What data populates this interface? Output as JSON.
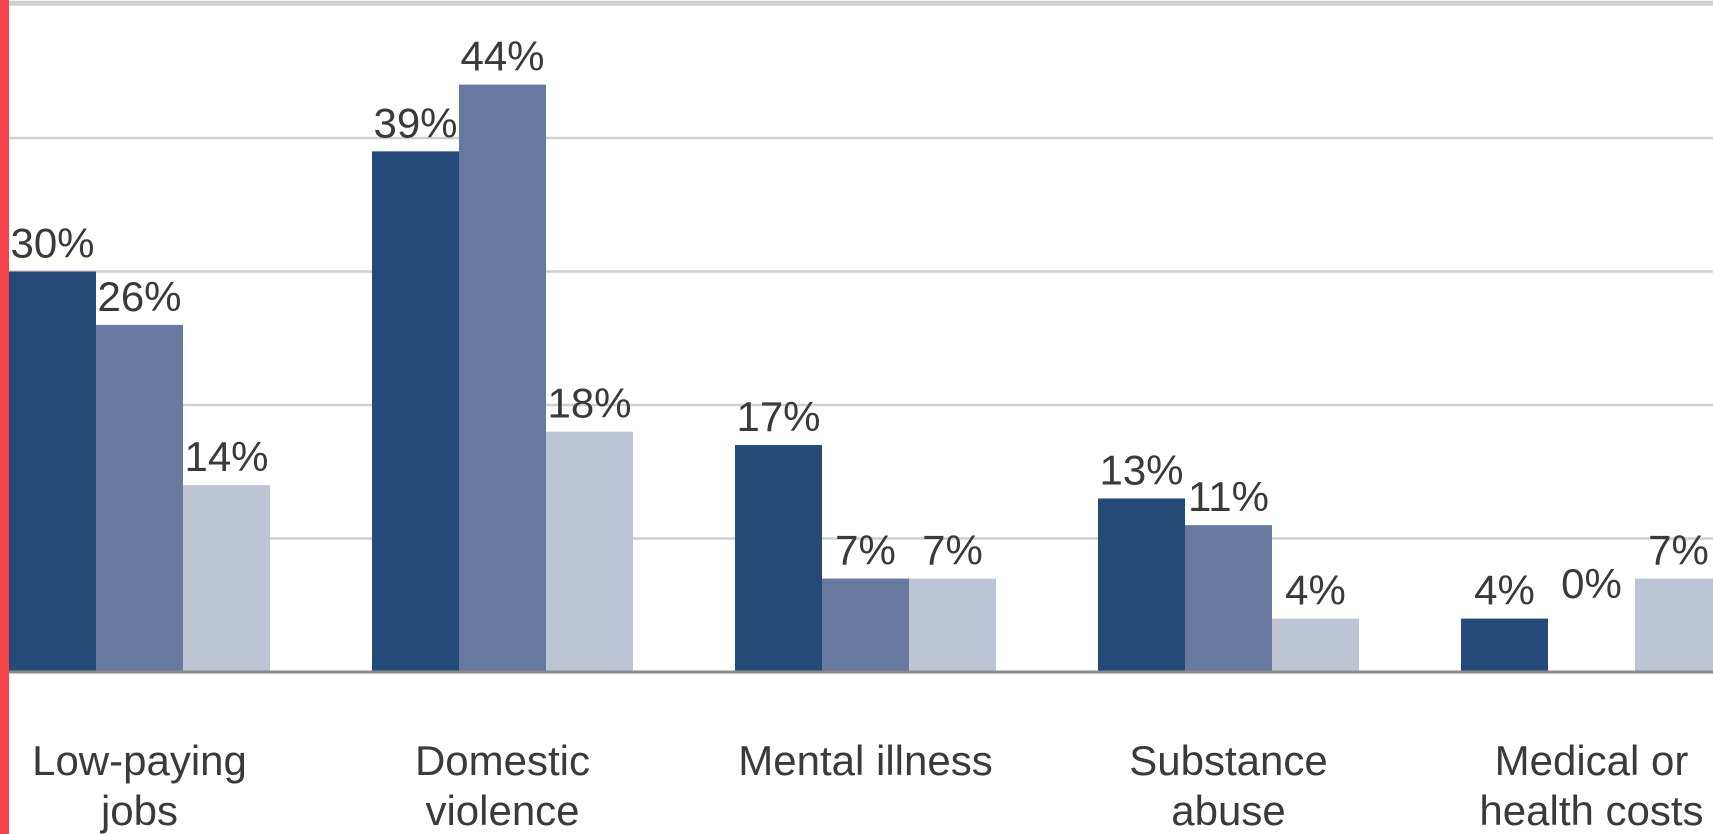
{
  "chart_data": {
    "type": "bar",
    "title": "",
    "xlabel": "",
    "ylabel": "",
    "ylim": [
      0,
      50
    ],
    "grid": true,
    "categories": [
      [
        "Low-paying",
        "jobs"
      ],
      [
        "Domestic",
        "violence"
      ],
      [
        "Mental illness"
      ],
      [
        "Substance",
        "abuse"
      ],
      [
        "Medical or",
        "health costs"
      ]
    ],
    "series": [
      {
        "color": "#264a78",
        "values": [
          30,
          39,
          17,
          13,
          4
        ],
        "labels": [
          "30%",
          "39%",
          "17%",
          "13%",
          "4%"
        ]
      },
      {
        "color": "#67799f",
        "values": [
          26,
          44,
          7,
          11,
          0
        ],
        "labels": [
          "26%",
          "44%",
          "7%",
          "11%",
          "0%"
        ]
      },
      {
        "color": "#bdc5d5",
        "values": [
          14,
          18,
          7,
          4,
          7
        ],
        "labels": [
          "14%",
          "18%",
          "7%",
          "4%",
          "7%"
        ]
      }
    ]
  }
}
